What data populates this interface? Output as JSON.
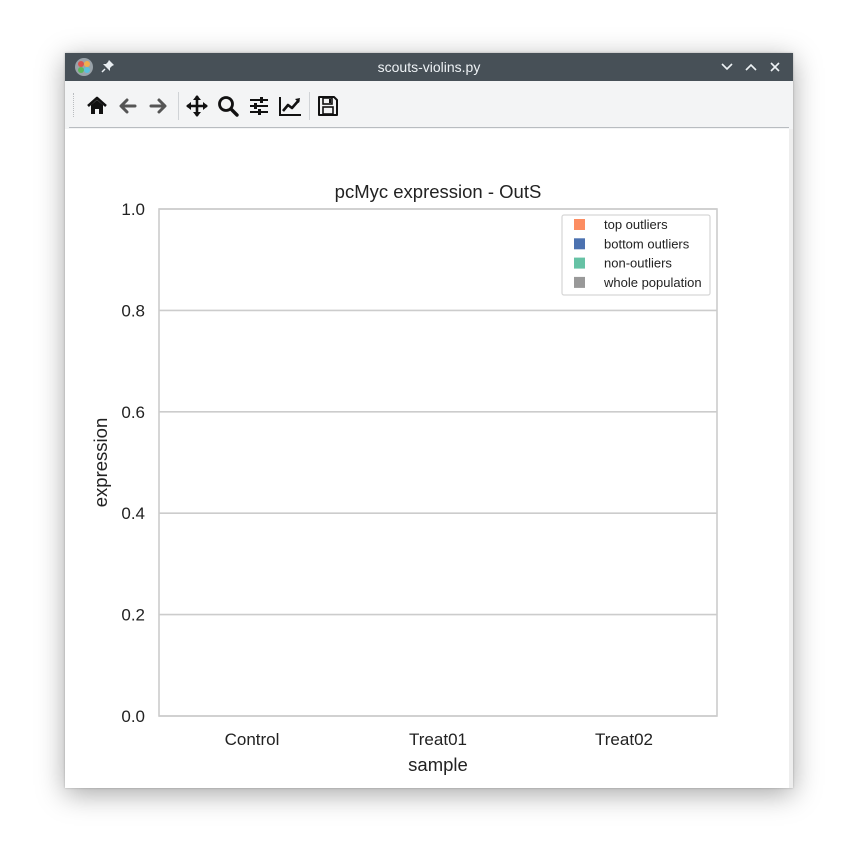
{
  "window": {
    "title": "scouts-violins.py"
  },
  "icons": {
    "app": "app-icon",
    "pin": "pin-icon",
    "minimize": "chevron-down-icon",
    "maximize": "chevron-up-icon",
    "close": "close-icon"
  },
  "toolbar": {
    "buttons": [
      {
        "name": "home-button",
        "icon": "home-icon"
      },
      {
        "name": "back-button",
        "icon": "arrow-left-icon"
      },
      {
        "name": "forward-button",
        "icon": "arrow-right-icon"
      },
      {
        "name": "pan-button",
        "icon": "move-icon"
      },
      {
        "name": "zoom-button",
        "icon": "magnifier-icon"
      },
      {
        "name": "configure-subplots-button",
        "icon": "sliders-icon"
      },
      {
        "name": "edit-axis-button",
        "icon": "line-chart-icon"
      },
      {
        "name": "save-button",
        "icon": "floppy-disk-icon"
      }
    ]
  },
  "chart_data": {
    "type": "violin",
    "title": "pcMyc expression - OutS",
    "xlabel": "sample",
    "ylabel": "expression",
    "categories": [
      "Control",
      "Treat01",
      "Treat02"
    ],
    "ylim": [
      0.0,
      1.0
    ],
    "yticks": [
      "0.0",
      "0.2",
      "0.4",
      "0.6",
      "0.8",
      "1.0"
    ],
    "grid": "horizontal",
    "legend_position": "top-right",
    "series": [
      {
        "name": "top outliers",
        "color": "#fc8d62",
        "values": []
      },
      {
        "name": "bottom outliers",
        "color": "#4c72b0",
        "values": []
      },
      {
        "name": "non-outliers",
        "color": "#66c2a5",
        "values": []
      },
      {
        "name": "whole population",
        "color": "#999999",
        "values": []
      }
    ]
  }
}
